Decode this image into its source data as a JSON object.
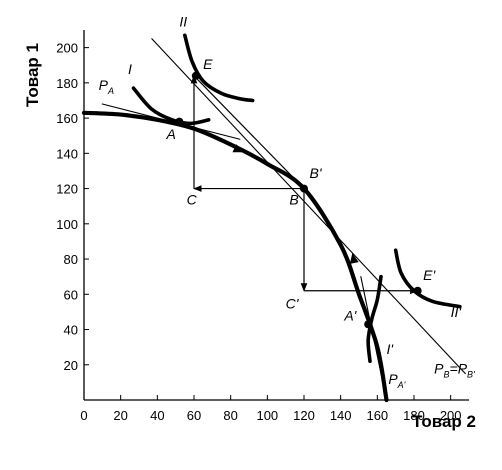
{
  "chart_data": {
    "type": "line",
    "title": "",
    "xlabel": "Товар 2",
    "ylabel": "Товар 1",
    "xlim": [
      0,
      210
    ],
    "ylim": [
      0,
      210
    ],
    "x_ticks": [
      0,
      20,
      40,
      60,
      80,
      100,
      120,
      140,
      160,
      180,
      200
    ],
    "y_ticks": [
      20,
      40,
      60,
      80,
      100,
      120,
      140,
      160,
      180,
      200
    ],
    "x_tick_labels": [
      "0",
      "20",
      "40",
      "60",
      "80",
      "100",
      "120",
      "140",
      "160",
      "180",
      "200"
    ],
    "y_tick_labels": [
      "20",
      "40",
      "60",
      "80",
      "100",
      "120",
      "140",
      "160",
      "180",
      "200"
    ],
    "grid": false,
    "series": [
      {
        "name": "",
        "kind": "ppf",
        "x": [
          0,
          20,
          40,
          60,
          80,
          100,
          120,
          140,
          150,
          160,
          165
        ],
        "y": [
          163,
          162,
          159,
          154,
          145,
          134,
          120,
          88,
          60,
          30,
          0
        ]
      },
      {
        "name": "I",
        "kind": "indifference",
        "x": [
          27,
          37,
          48,
          58,
          68
        ],
        "y": [
          177,
          165,
          159,
          157,
          159
        ]
      },
      {
        "name": "II",
        "kind": "indifference",
        "x": [
          55,
          59,
          65,
          75,
          85,
          92
        ],
        "y": [
          207,
          192,
          181,
          174,
          171,
          170
        ]
      },
      {
        "name": "I'",
        "kind": "indifference",
        "x": [
          162,
          160,
          157,
          155,
          156
        ],
        "y": [
          70,
          57,
          46,
          34,
          22
        ]
      },
      {
        "name": "II'",
        "kind": "indifference",
        "x": [
          170,
          173,
          180,
          190,
          205
        ],
        "y": [
          85,
          72,
          62,
          56,
          53
        ]
      },
      {
        "name": "P_B=P_B'",
        "kind": "price-line",
        "x": [
          37,
          208
        ],
        "y": [
          205,
          15
        ]
      },
      {
        "name": "P_A",
        "kind": "price-line",
        "x": [
          10,
          85
        ],
        "y": [
          168,
          148
        ]
      },
      {
        "name": "P_A'",
        "kind": "price-line",
        "x": [
          151,
          164
        ],
        "y": [
          70,
          5
        ]
      }
    ],
    "paths": [
      {
        "x": [
          60,
          60,
          120
        ],
        "y": [
          120,
          184,
          120
        ],
        "arrow_at": 1
      },
      {
        "x": [
          120,
          60
        ],
        "y": [
          120,
          120
        ],
        "arrow_at": 1
      },
      {
        "x": [
          120,
          120
        ],
        "y": [
          120,
          62
        ],
        "arrow_at": 1
      },
      {
        "x": [
          120,
          182
        ],
        "y": [
          62,
          62
        ],
        "arrow_at": 1
      }
    ],
    "curve_arrows": [
      {
        "x": 84,
        "y": 142,
        "dx": 1,
        "dy": -0.45
      },
      {
        "x": 147,
        "y": 80,
        "dx": -0.2,
        "dy": 1
      }
    ],
    "points": [
      {
        "label": "A",
        "x": 52,
        "y": 158
      },
      {
        "label": "E",
        "x": 61,
        "y": 184
      },
      {
        "label": "B'",
        "x": 120,
        "y": 120
      },
      {
        "label": "E'",
        "x": 182,
        "y": 62
      },
      {
        "label": "A'",
        "x": 155,
        "y": 43
      }
    ],
    "labels": [
      {
        "text": "II",
        "x": 52,
        "y": 212
      },
      {
        "text": "E",
        "x": 65,
        "y": 188
      },
      {
        "text": "I",
        "x": 24,
        "y": 185
      },
      {
        "text": "P",
        "sub": "A",
        "x": 8,
        "y": 176
      },
      {
        "text": "A",
        "x": 45,
        "y": 148
      },
      {
        "text": "B'",
        "x": 123,
        "y": 126
      },
      {
        "text": "C",
        "x": 56,
        "y": 111
      },
      {
        "text": "B",
        "x": 112,
        "y": 111
      },
      {
        "text": "E'",
        "x": 185,
        "y": 68
      },
      {
        "text": "C'",
        "x": 110,
        "y": 52
      },
      {
        "text": "A'",
        "x": 142,
        "y": 45
      },
      {
        "text": "II'",
        "x": 200,
        "y": 47
      },
      {
        "text": "I'",
        "x": 165,
        "y": 26
      },
      {
        "text": "P",
        "sub": "A'",
        "x": 166,
        "y": 9
      },
      {
        "text": "P",
        "sub": "B",
        "x": 191,
        "y": 15,
        "suffix": "=P",
        "sub2": "B'"
      }
    ]
  }
}
